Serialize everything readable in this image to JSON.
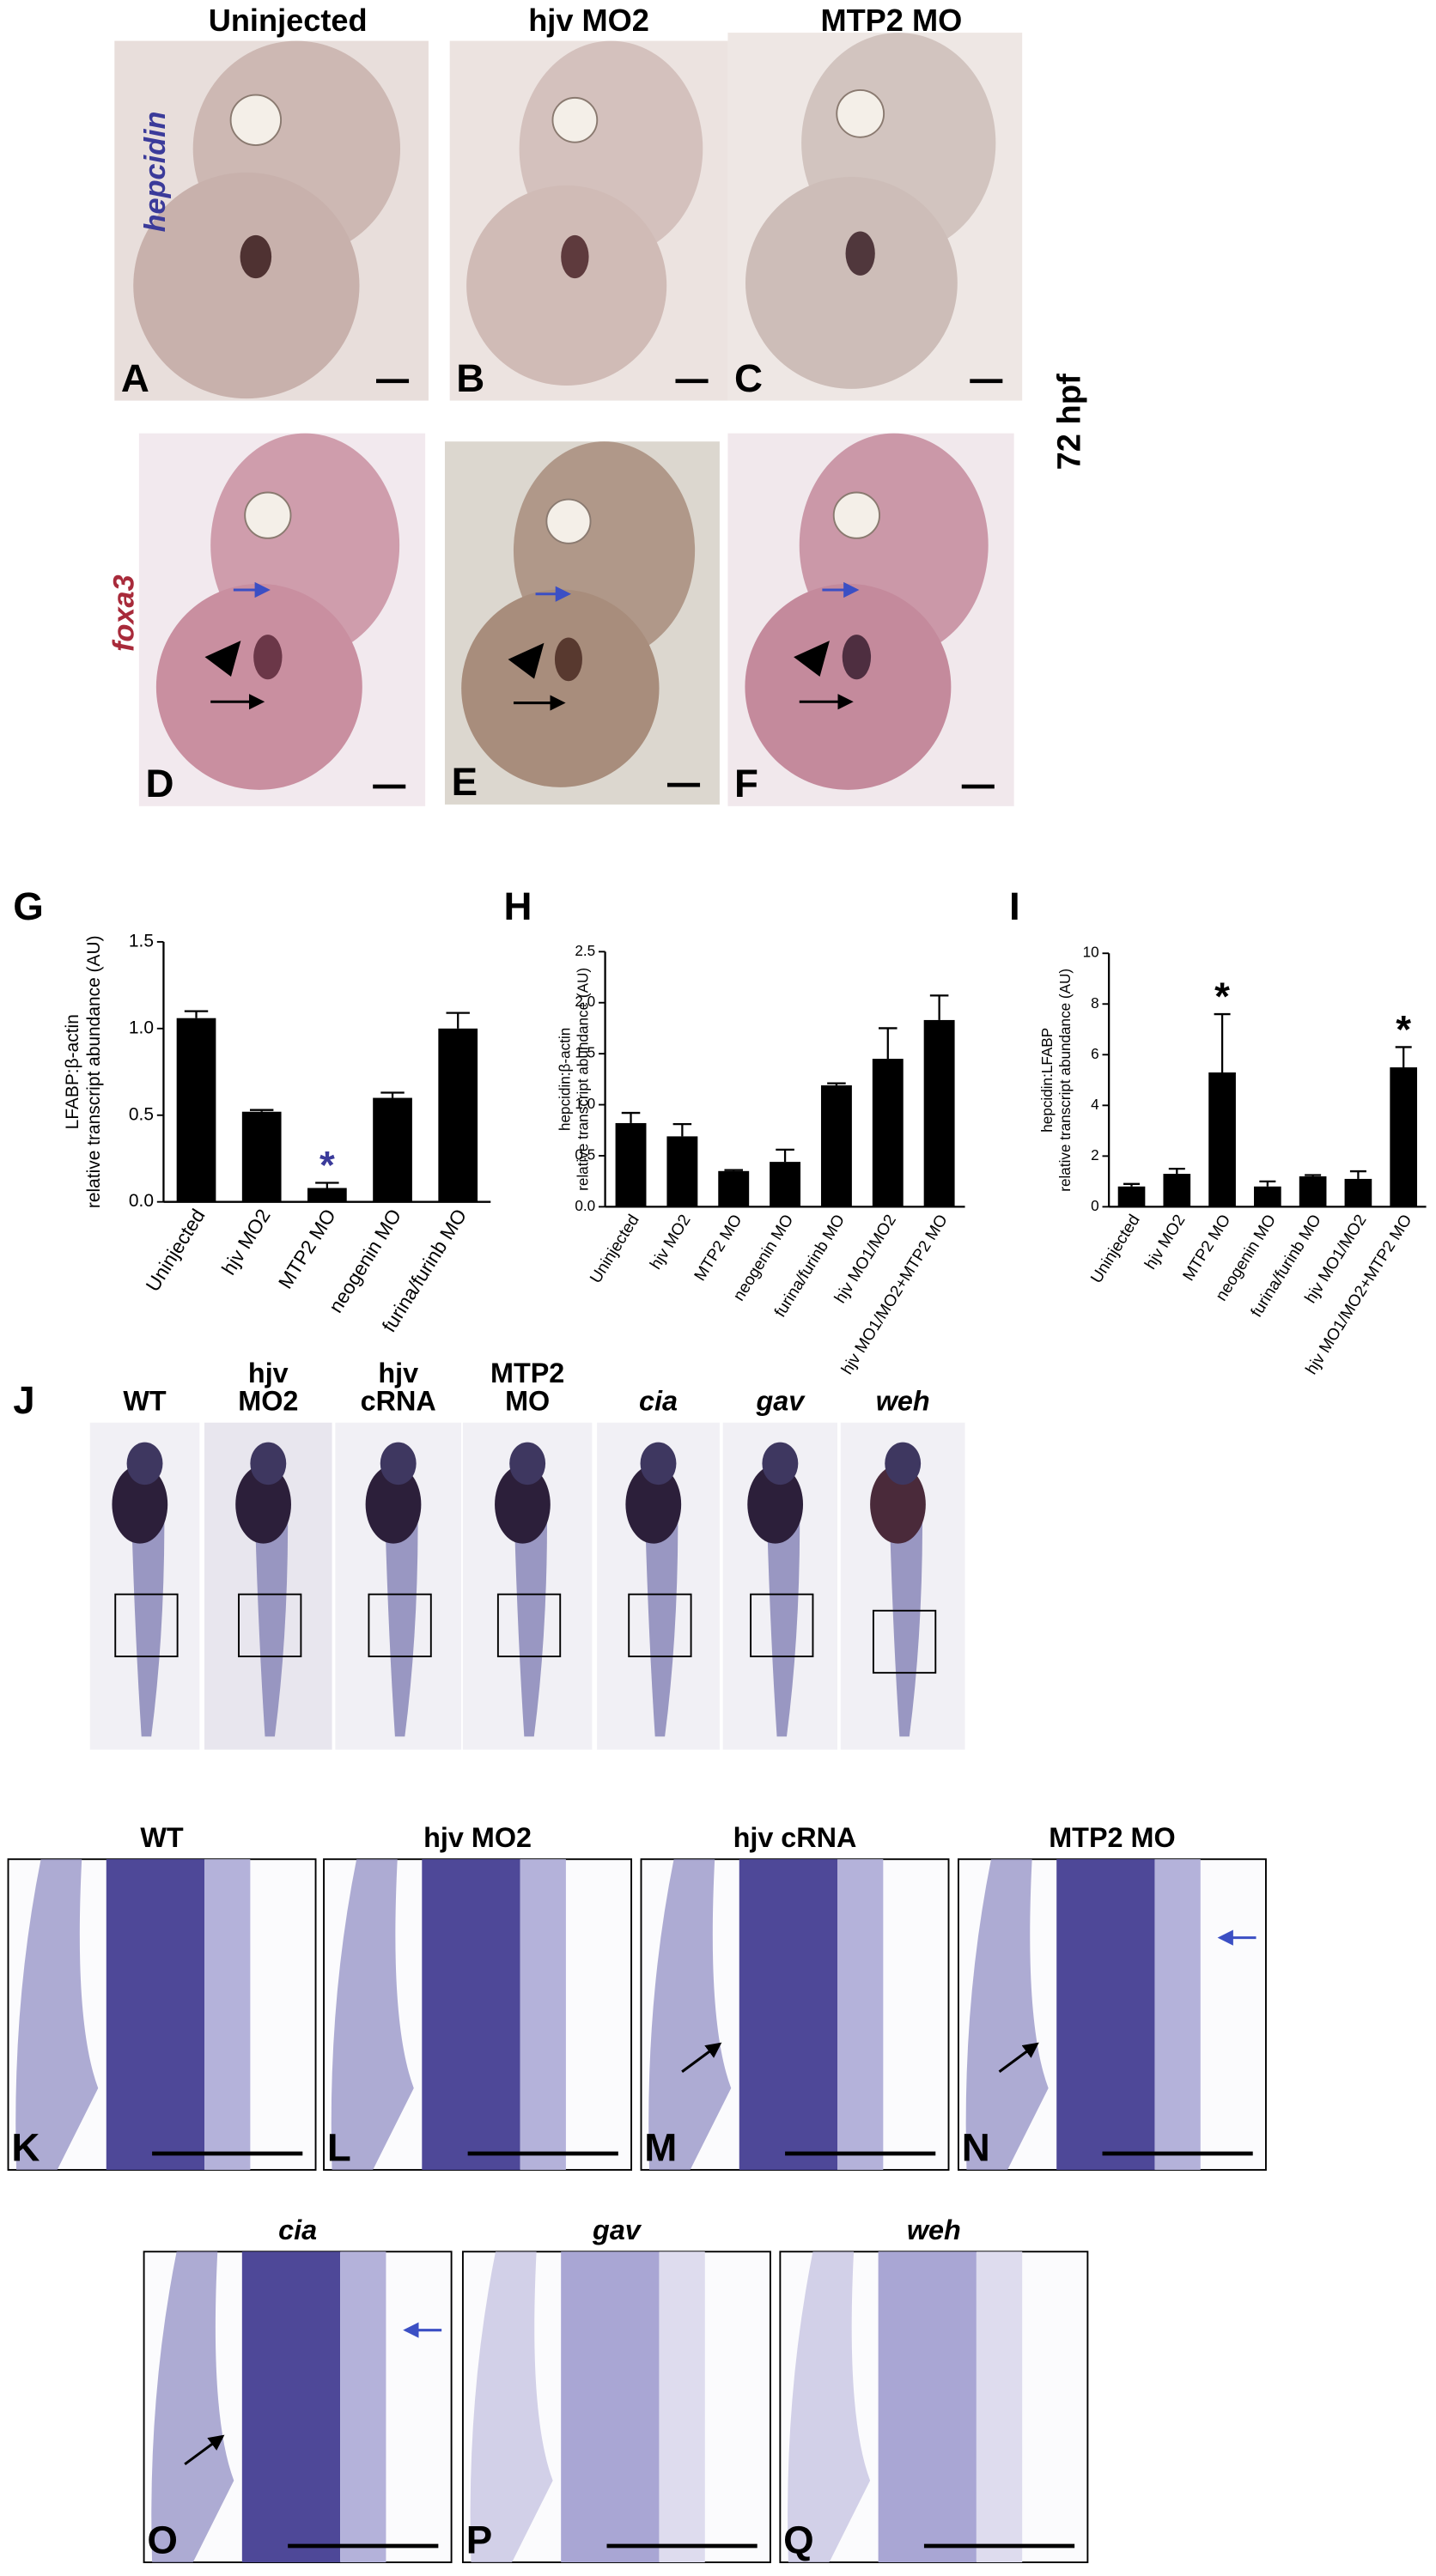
{
  "panels_top": {
    "column_titles": [
      "Uninjected",
      "hjv MO2",
      "MTP2 MO"
    ],
    "stain_labels": [
      "hepcidin",
      "foxa3"
    ],
    "stage": "72 hpf",
    "letters": [
      "A",
      "B",
      "C",
      "D",
      "E",
      "F"
    ]
  },
  "chart_data": [
    {
      "type": "bar",
      "letter": "G",
      "ylabel": "relative transcript abundance (AU)",
      "ylabel_ratio": "LFABP:β-actin",
      "categories": [
        "Uninjected",
        "hjv MO2",
        "MTP2 MO",
        "neogenin MO",
        "furina/furinb MO"
      ],
      "values": [
        1.06,
        0.52,
        0.08,
        0.6,
        1.0
      ],
      "errors": [
        0.04,
        0.01,
        0.03,
        0.03,
        0.09
      ],
      "color": "#000000",
      "ylim": [
        0,
        1.5
      ],
      "yticks": [
        {
          "value": 0,
          "label": "0.0"
        },
        {
          "value": 0.5,
          "label": "0.5"
        },
        {
          "value": 1,
          "label": "1.0"
        },
        {
          "value": 1.5,
          "label": "1.5"
        }
      ],
      "annotations": [
        {
          "text": "*",
          "category": "MTP2 MO",
          "color": "#3a3a9a"
        }
      ]
    },
    {
      "type": "bar",
      "letter": "H",
      "ylabel": "relative transcript abundance (AU)",
      "ylabel_ratio": "hepcidin:β-actin",
      "categories": [
        "Uninjected",
        "hjv MO2",
        "MTP2 MO",
        "neogenin MO",
        "furina/furinb MO",
        "hjv MO1/MO2",
        "hjv MO1/MO2+MTP2 MO"
      ],
      "values": [
        0.82,
        0.69,
        0.35,
        0.44,
        1.19,
        1.45,
        1.83
      ],
      "errors": [
        0.1,
        0.12,
        0.01,
        0.12,
        0.02,
        0.3,
        0.24
      ],
      "color": "#000000",
      "ylim": [
        0,
        2.5
      ],
      "yticks": [
        {
          "value": 0,
          "label": "0.0"
        },
        {
          "value": 0.5,
          "label": "0.5"
        },
        {
          "value": 1,
          "label": "1.0"
        },
        {
          "value": 1.5,
          "label": "1.5"
        },
        {
          "value": 2,
          "label": "2.0"
        },
        {
          "value": 2.5,
          "label": "2.5"
        }
      ],
      "annotations": []
    },
    {
      "type": "bar",
      "letter": "I",
      "ylabel": "relative transcript abundance (AU)",
      "ylabel_ratio": "hepcidin:LFABP",
      "categories": [
        "Uninjected",
        "hjv MO2",
        "MTP2 MO",
        "neogenin MO",
        "furina/furinb MO",
        "hjv MO1/MO2",
        "hjv MO1/MO2+MTP2 MO"
      ],
      "values": [
        0.8,
        1.3,
        5.3,
        0.8,
        1.2,
        1.1,
        5.5
      ],
      "errors": [
        0.1,
        0.2,
        2.3,
        0.2,
        0.05,
        0.3,
        0.8
      ],
      "color": "#000000",
      "ylim": [
        0,
        10
      ],
      "yticks": [
        0,
        2,
        4,
        6,
        8,
        10
      ],
      "annotations": [
        {
          "text": "*",
          "category": "MTP2 MO",
          "color": "#000000"
        },
        {
          "text": "*",
          "category": "hjv MO1/MO2+MTP2 MO",
          "color": "#000000"
        }
      ]
    }
  ],
  "panel_j": {
    "letter": "J",
    "columns": [
      {
        "lines": [
          "WT"
        ]
      },
      {
        "lines": [
          "hjv",
          "MO2"
        ]
      },
      {
        "lines": [
          "hjv",
          "cRNA"
        ]
      },
      {
        "lines": [
          "MTP2",
          "MO"
        ]
      },
      {
        "lines": [
          "cia"
        ]
      },
      {
        "lines": [
          "gav"
        ]
      },
      {
        "lines": [
          "weh"
        ]
      }
    ]
  },
  "panels_closeup": {
    "titles": [
      "WT",
      "hjv MO2",
      "hjv cRNA",
      "MTP2 MO",
      "cia",
      "gav",
      "weh"
    ],
    "letters": [
      "K",
      "L",
      "M",
      "N",
      "O",
      "P",
      "Q"
    ]
  }
}
